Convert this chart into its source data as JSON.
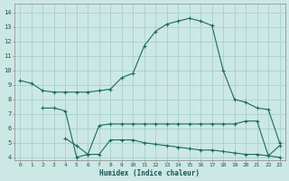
{
  "xlabel": "Humidex (Indice chaleur)",
  "bg_color": "#cce8e4",
  "grid_color": "#aad4d0",
  "line_color": "#1a6b5e",
  "ylim": [
    3.8,
    14.6
  ],
  "xlim": [
    -0.5,
    23.5
  ],
  "series1": [
    9.3,
    9.1,
    8.6,
    8.5,
    8.5,
    8.5,
    8.5,
    8.6,
    8.7,
    9.5,
    9.8,
    11.7,
    12.7,
    13.2,
    13.4,
    13.6,
    13.4,
    13.1,
    10.0,
    8.0,
    7.8,
    7.4,
    7.3,
    5.0
  ],
  "series2": [
    null,
    null,
    7.4,
    7.4,
    7.2,
    4.0,
    4.2,
    6.2,
    6.3,
    6.3,
    6.3,
    6.3,
    6.3,
    6.3,
    6.3,
    6.3,
    6.3,
    6.3,
    6.3,
    6.3,
    6.5,
    6.5,
    4.1,
    4.8
  ],
  "series3": [
    null,
    null,
    null,
    null,
    5.3,
    4.8,
    4.2,
    4.2,
    5.2,
    5.2,
    5.2,
    5.0,
    4.9,
    4.8,
    4.7,
    4.6,
    4.5,
    4.5,
    4.4,
    4.3,
    4.2,
    4.2,
    4.1,
    4.0
  ],
  "yticks": [
    4,
    5,
    6,
    7,
    8,
    9,
    10,
    11,
    12,
    13,
    14
  ],
  "xticks": [
    0,
    1,
    2,
    3,
    4,
    5,
    6,
    7,
    8,
    9,
    10,
    11,
    12,
    13,
    14,
    15,
    16,
    17,
    18,
    19,
    20,
    21,
    22,
    23
  ]
}
